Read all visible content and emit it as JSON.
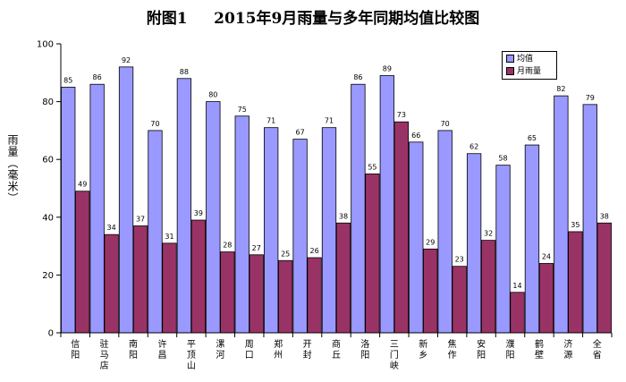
{
  "chart_data": {
    "type": "bar",
    "title": "附图1     2015年9月雨量与多年同期均值比较图",
    "ylabel": "雨量（毫米）",
    "ylim": [
      0,
      100
    ],
    "yticks": [
      0,
      20,
      40,
      60,
      80,
      100
    ],
    "grid": false,
    "legend_position": "top-right",
    "categories": [
      "信阳",
      "驻马店",
      "南阳",
      "许昌",
      "平顶山",
      "漯河",
      "周口",
      "郑州",
      "开封",
      "商丘",
      "洛阳",
      "三门峡",
      "新乡",
      "焦作",
      "安阳",
      "濮阳",
      "鹤壁",
      "济源",
      "全省"
    ],
    "series": [
      {
        "name": "均值",
        "color": "#9999ff",
        "values": [
          85,
          86,
          92,
          70,
          88,
          80,
          75,
          71,
          67,
          71,
          86,
          89,
          66,
          70,
          62,
          58,
          65,
          82,
          79
        ]
      },
      {
        "name": "月雨量",
        "color": "#993366",
        "values": [
          49,
          34,
          37,
          31,
          39,
          28,
          27,
          25,
          26,
          38,
          55,
          73,
          29,
          23,
          32,
          14,
          24,
          35,
          38
        ]
      }
    ]
  }
}
